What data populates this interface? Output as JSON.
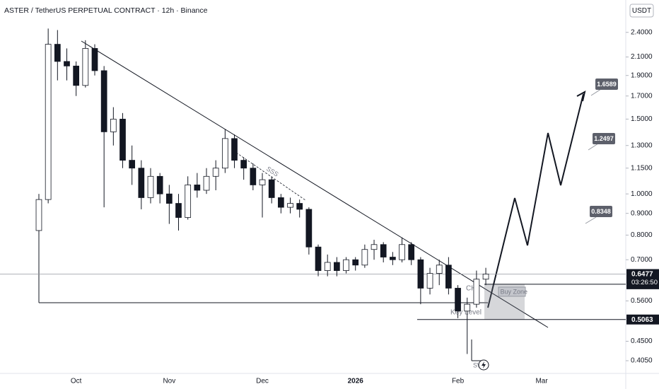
{
  "chart_data": {
    "type": "candlestick",
    "title": "ASTER / TetherUS PERPETUAL CONTRACT · 12h · Binance",
    "currency": "USDT",
    "log_scale": true,
    "grid": false,
    "up_color": "#ffffff",
    "down_color": "#131722",
    "categories": [
      null,
      null,
      null,
      null,
      "Oct",
      null,
      null,
      null,
      null,
      null,
      null,
      null,
      null,
      null,
      "Nov",
      null,
      null,
      null,
      null,
      null,
      null,
      null,
      null,
      null,
      "Dec",
      null,
      null,
      null,
      null,
      null,
      null,
      null,
      null,
      null,
      "2026",
      null,
      null,
      null,
      null,
      null,
      null,
      null,
      null,
      null,
      null,
      "Feb",
      null,
      null,
      null,
      null,
      null,
      null,
      null,
      null,
      "Mar",
      null,
      null,
      null,
      null,
      null,
      null,
      null,
      null
    ],
    "open": [
      0.82,
      0.97,
      2.25,
      2.05,
      2.0,
      1.8,
      2.2,
      1.95,
      1.4,
      1.5,
      1.2,
      1.15,
      0.98,
      1.1,
      1.0,
      0.95,
      0.88,
      1.05,
      1.02,
      1.1,
      1.15,
      1.35,
      1.2,
      1.15,
      1.05,
      1.08,
      0.98,
      0.93,
      0.95,
      0.92,
      0.75,
      0.66,
      0.69,
      0.66,
      0.7,
      0.68,
      0.74,
      0.76,
      0.71,
      0.7,
      0.76,
      0.7,
      0.6,
      0.65,
      0.68,
      0.6,
      0.53,
      0.55,
      0.63,
      null,
      null,
      null,
      null,
      null,
      null,
      null,
      null,
      null,
      null,
      null,
      null,
      null,
      null
    ],
    "high": [
      1.0,
      2.45,
      2.43,
      2.2,
      2.05,
      2.3,
      2.25,
      2.0,
      1.6,
      1.55,
      1.3,
      1.2,
      1.15,
      1.12,
      1.05,
      1.0,
      1.1,
      1.12,
      1.15,
      1.2,
      1.42,
      1.38,
      1.22,
      1.18,
      1.12,
      1.1,
      1.0,
      0.98,
      0.97,
      0.93,
      0.76,
      0.72,
      0.71,
      0.71,
      0.71,
      0.76,
      0.78,
      0.77,
      0.73,
      0.79,
      0.77,
      0.71,
      0.67,
      0.7,
      0.71,
      0.61,
      0.57,
      0.66,
      0.67,
      null,
      null,
      null,
      null,
      null,
      null,
      null,
      null,
      null,
      null,
      null,
      null,
      null,
      null
    ],
    "low": [
      0.8,
      0.95,
      1.85,
      1.85,
      1.7,
      1.78,
      1.9,
      0.93,
      1.3,
      1.15,
      1.05,
      0.92,
      0.95,
      0.95,
      0.85,
      0.82,
      0.87,
      0.98,
      1.0,
      1.02,
      1.12,
      1.15,
      1.08,
      1.02,
      0.88,
      0.95,
      0.9,
      0.9,
      0.88,
      0.72,
      0.64,
      0.64,
      0.64,
      0.65,
      0.66,
      0.67,
      0.7,
      0.69,
      0.68,
      0.69,
      0.68,
      0.55,
      0.58,
      0.61,
      0.58,
      0.51,
      0.42,
      0.54,
      0.61,
      null,
      null,
      null,
      null,
      null,
      null,
      null,
      null,
      null,
      null,
      null,
      null,
      null,
      null
    ],
    "close": [
      0.97,
      2.25,
      2.05,
      2.0,
      1.8,
      2.2,
      1.95,
      1.4,
      1.5,
      1.2,
      1.15,
      0.98,
      1.1,
      1.0,
      0.95,
      0.88,
      1.05,
      1.02,
      1.1,
      1.15,
      1.35,
      1.2,
      1.15,
      1.05,
      1.08,
      0.98,
      0.93,
      0.95,
      0.92,
      0.75,
      0.66,
      0.69,
      0.66,
      0.7,
      0.68,
      0.74,
      0.76,
      0.71,
      0.7,
      0.76,
      0.7,
      0.6,
      0.65,
      0.68,
      0.6,
      0.53,
      0.55,
      0.63,
      0.6477,
      null,
      null,
      null,
      null,
      null,
      null,
      null,
      null,
      null,
      null,
      null,
      null,
      null,
      null
    ],
    "ylim": [
      0.378,
      2.86
    ],
    "yticks": [
      {
        "value": 2.4,
        "label": "2.4000"
      },
      {
        "value": 2.1,
        "label": "2.1000"
      },
      {
        "value": 1.9,
        "label": "1.9000"
      },
      {
        "value": 1.7,
        "label": "1.7000"
      },
      {
        "value": 1.5,
        "label": "1.5000"
      },
      {
        "value": 1.3,
        "label": "1.3000"
      },
      {
        "value": 1.15,
        "label": "1.1500"
      },
      {
        "value": 1.0,
        "label": "1.0000"
      },
      {
        "value": 0.9,
        "label": "0.9000"
      },
      {
        "value": 0.8,
        "label": "0.8000"
      },
      {
        "value": 0.7,
        "label": "0.7000"
      },
      {
        "value": 0.56,
        "label": "0.5600"
      },
      {
        "value": 0.45,
        "label": "0.4500"
      },
      {
        "value": 0.405,
        "label": "0.4050"
      }
    ],
    "last_price": 0.6477,
    "countdown": "03:26:50",
    "levels": [
      0.6129,
      0.5063
    ],
    "targets": [
      1.6589,
      1.2497,
      0.8348
    ],
    "annotations": {
      "sss": "SSS",
      "ch": "CH",
      "buy_zone": "Buy Zone",
      "key_level": "Key Level",
      "sw": "SW"
    }
  }
}
